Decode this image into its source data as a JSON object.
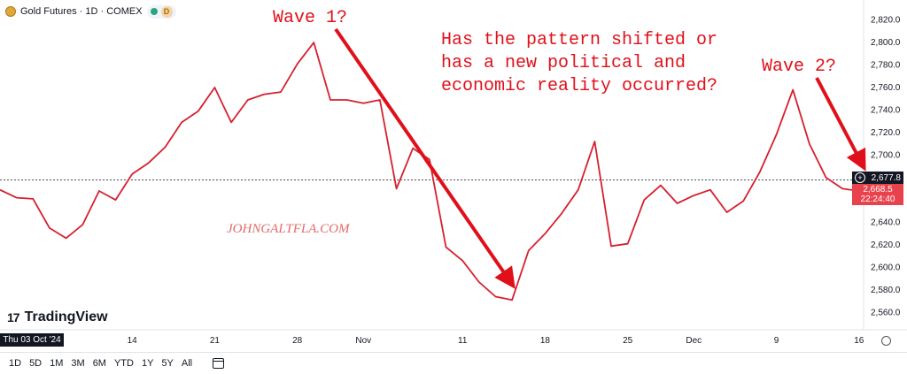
{
  "header": {
    "title": "Gold Futures · 1D · COMEX",
    "status_badge": "D"
  },
  "watermark": "JOHNGALTFLA.COM",
  "brand": {
    "mark": "17",
    "name": "TradingView"
  },
  "annotations": {
    "wave1": "Wave 1?",
    "wave2": "Wave 2?",
    "question_line1": "Has the pattern shifted or",
    "question_line2": "has a new political and",
    "question_line3": "economic reality occurred?"
  },
  "cursor_date": "Thu 03 Oct '24",
  "price_tags": {
    "dark_price": "2,677.8",
    "red_price": "2,668.5",
    "countdown": "22:24:40"
  },
  "toolbar": {
    "timeframes": [
      "1D",
      "5D",
      "1M",
      "3M",
      "6M",
      "YTD",
      "1Y",
      "5Y",
      "All"
    ]
  },
  "colors": {
    "series": "#d6202f",
    "arrow": "#e0101a",
    "axis_text": "#131722"
  },
  "chart_data": {
    "type": "line",
    "x": [
      "2024-10-02",
      "2024-10-03",
      "2024-10-04",
      "2024-10-07",
      "2024-10-08",
      "2024-10-09",
      "2024-10-10",
      "2024-10-11",
      "2024-10-14",
      "2024-10-15",
      "2024-10-16",
      "2024-10-17",
      "2024-10-18",
      "2024-10-21",
      "2024-10-22",
      "2024-10-23",
      "2024-10-24",
      "2024-10-25",
      "2024-10-28",
      "2024-10-29",
      "2024-10-30",
      "2024-10-31",
      "2024-11-01",
      "2024-11-04",
      "2024-11-05",
      "2024-11-06",
      "2024-11-07",
      "2024-11-08",
      "2024-11-11",
      "2024-11-12",
      "2024-11-13",
      "2024-11-14",
      "2024-11-15",
      "2024-11-18",
      "2024-11-19",
      "2024-11-20",
      "2024-11-21",
      "2024-11-22",
      "2024-11-25",
      "2024-11-26",
      "2024-11-27",
      "2024-11-29",
      "2024-12-02",
      "2024-12-03",
      "2024-12-04",
      "2024-12-05",
      "2024-12-06",
      "2024-12-09",
      "2024-12-10",
      "2024-12-11",
      "2024-12-12",
      "2024-12-13",
      "2024-12-16",
      "2024-12-17"
    ],
    "values": [
      2669,
      2662,
      2661,
      2635,
      2626,
      2638,
      2668,
      2660,
      2683,
      2693,
      2707,
      2729,
      2739,
      2760,
      2729,
      2749,
      2754,
      2756,
      2781,
      2800,
      2749,
      2749,
      2746,
      2749,
      2670,
      2706,
      2696,
      2618,
      2606,
      2587,
      2574,
      2571,
      2615,
      2630,
      2648,
      2669,
      2712,
      2619,
      2621,
      2660,
      2673,
      2657,
      2664,
      2669,
      2649,
      2659,
      2685,
      2718,
      2758,
      2710,
      2680,
      2670,
      2668,
      2668
    ],
    "y_ticks": [
      "2,820.0",
      "2,800.0",
      "2,780.0",
      "2,760.0",
      "2,740.0",
      "2,720.0",
      "2,700.0",
      "2,680.0",
      "2,660.0",
      "2,640.0",
      "2,620.0",
      "2,600.0",
      "2,580.0",
      "2,560.0"
    ],
    "x_ticks": [
      "14",
      "21",
      "28",
      "Nov",
      "11",
      "18",
      "25",
      "Dec",
      "9",
      "16"
    ],
    "ylim": [
      2550,
      2830
    ],
    "last_price_line": 2677.8,
    "grid": false
  }
}
